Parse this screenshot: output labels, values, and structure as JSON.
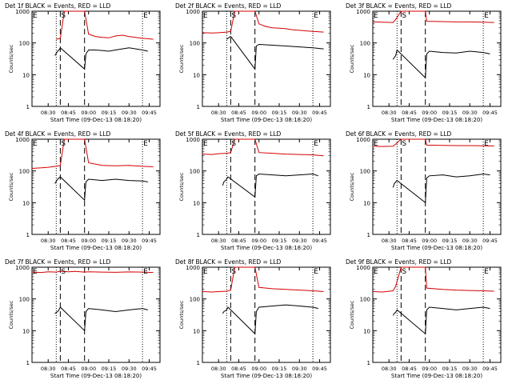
{
  "colors": {
    "events": "#000000",
    "lld": "#d40000",
    "axis": "#000000"
  },
  "chart_data": [
    {
      "type": "line",
      "title": "Det 1f BLACK = Events, RED = LLD",
      "xlabel": "Start Time (09-Dec-13 08:18:20)",
      "ylabel": "Counts/sec",
      "x_ticks": [
        "08:30",
        "08:45",
        "09:00",
        "09:15",
        "09:30",
        "09:45"
      ],
      "y_ticks": [
        "1",
        "10",
        "100",
        "1000"
      ],
      "yscale": "log",
      "ylim": [
        1,
        1000
      ],
      "markers": [
        {
          "label": "E",
          "time": "08:18"
        },
        {
          "label": "S",
          "time": "08:39"
        },
        {
          "label": "E",
          "time": "09:40"
        }
      ],
      "dashed_times": [
        "08:39",
        "08:57"
      ],
      "dotted_times": [
        "08:36",
        "09:40"
      ],
      "series": [
        {
          "name": "LLD",
          "x": [
            "08:36",
            "08:39",
            "08:42",
            "08:57",
            "09:00",
            "09:05",
            "09:10",
            "09:15",
            "09:20",
            "09:25",
            "09:30",
            "09:35",
            "09:40",
            "09:45",
            "09:48"
          ],
          "values": [
            130,
            140,
            1000,
            1000,
            190,
            160,
            150,
            145,
            165,
            175,
            160,
            150,
            140,
            135,
            130
          ]
        },
        {
          "name": "Events",
          "x": [
            "08:35",
            "08:37",
            "08:38",
            "08:39",
            "08:57",
            "08:58",
            "09:00",
            "09:05",
            "09:10",
            "09:15",
            "09:20",
            "09:25",
            "09:30",
            "09:35",
            "09:40",
            "09:44"
          ],
          "values": [
            40,
            55,
            60,
            70,
            15,
            45,
            60,
            60,
            58,
            55,
            60,
            65,
            70,
            65,
            60,
            55
          ]
        }
      ]
    },
    {
      "type": "line",
      "title": "Det 2f BLACK = Events, RED = LLD",
      "xlabel": "Start Time (09-Dec-13 08:18:20)",
      "ylabel": "Counts/sec",
      "x_ticks": [
        "08:30",
        "08:45",
        "09:00",
        "09:15",
        "09:30",
        "09:45"
      ],
      "y_ticks": [
        "1",
        "10",
        "100",
        "1000"
      ],
      "yscale": "log",
      "ylim": [
        1,
        1000
      ],
      "markers": [
        {
          "label": "E",
          "time": "08:18"
        },
        {
          "label": "S",
          "time": "08:39"
        },
        {
          "label": "E",
          "time": "09:40"
        }
      ],
      "dashed_times": [
        "08:39",
        "08:57"
      ],
      "dotted_times": [
        "08:36",
        "09:40"
      ],
      "series": [
        {
          "name": "LLD",
          "x": [
            "08:18",
            "08:25",
            "08:30",
            "08:36",
            "08:39",
            "08:42",
            "08:57",
            "09:00",
            "09:05",
            "09:10",
            "09:15",
            "09:20",
            "09:25",
            "09:30",
            "09:35",
            "09:40",
            "09:48"
          ],
          "values": [
            210,
            205,
            210,
            220,
            230,
            1000,
            1000,
            400,
            330,
            300,
            290,
            280,
            260,
            250,
            240,
            230,
            220
          ]
        },
        {
          "name": "Events",
          "x": [
            "08:36",
            "08:38",
            "08:39",
            "08:57",
            "08:58",
            "09:00",
            "09:10",
            "09:20",
            "09:30",
            "09:40",
            "09:48"
          ],
          "values": [
            130,
            150,
            160,
            15,
            80,
            90,
            85,
            80,
            75,
            70,
            65
          ]
        }
      ]
    },
    {
      "type": "line",
      "title": "Det 3f BLACK = Events, RED = LLD",
      "xlabel": "Start Time (09-Dec-13 08:18:20)",
      "ylabel": "Counts/sec",
      "x_ticks": [
        "08:30",
        "08:45",
        "09:00",
        "09:15",
        "09:30",
        "09:45"
      ],
      "y_ticks": [
        "1",
        "10",
        "100",
        "1000"
      ],
      "yscale": "log",
      "ylim": [
        1,
        1000
      ],
      "markers": [
        {
          "label": "E",
          "time": "08:18"
        },
        {
          "label": "S",
          "time": "08:39"
        },
        {
          "label": "E",
          "time": "09:40"
        }
      ],
      "dashed_times": [
        "08:39",
        "08:57"
      ],
      "dotted_times": [
        "08:36",
        "09:40"
      ],
      "series": [
        {
          "name": "LLD",
          "x": [
            "08:18",
            "08:25",
            "08:33",
            "08:35",
            "08:39",
            "08:57",
            "08:58",
            "09:10",
            "09:20",
            "09:30",
            "09:40",
            "09:48"
          ],
          "values": [
            460,
            450,
            440,
            550,
            1000,
            1000,
            480,
            470,
            460,
            460,
            450,
            440
          ]
        },
        {
          "name": "Events",
          "x": [
            "08:33",
            "08:34",
            "08:35",
            "08:36",
            "08:57",
            "08:58",
            "09:00",
            "09:10",
            "09:20",
            "09:30",
            "09:40",
            "09:45"
          ],
          "values": [
            30,
            35,
            40,
            60,
            8,
            45,
            55,
            50,
            48,
            55,
            50,
            45
          ]
        }
      ]
    },
    {
      "type": "line",
      "title": "Det 4f BLACK = Events, RED = LLD",
      "xlabel": "Start Time (09-Dec-13 08:18:20)",
      "ylabel": "Counts/sec",
      "x_ticks": [
        "08:30",
        "08:45",
        "09:00",
        "09:15",
        "09:30",
        "09:45"
      ],
      "y_ticks": [
        "1",
        "10",
        "100",
        "1000"
      ],
      "yscale": "log",
      "ylim": [
        1,
        1000
      ],
      "markers": [
        {
          "label": "E",
          "time": "08:18"
        },
        {
          "label": "S",
          "time": "08:39"
        },
        {
          "label": "E",
          "time": "09:40"
        }
      ],
      "dashed_times": [
        "08:39",
        "08:57"
      ],
      "dotted_times": [
        "08:36",
        "09:40"
      ],
      "series": [
        {
          "name": "LLD",
          "x": [
            "08:18",
            "08:25",
            "08:30",
            "08:36",
            "08:39",
            "08:42",
            "08:57",
            "09:00",
            "09:10",
            "09:20",
            "09:30",
            "09:40",
            "09:48"
          ],
          "values": [
            120,
            125,
            130,
            140,
            150,
            1000,
            1000,
            180,
            150,
            145,
            150,
            140,
            135
          ]
        },
        {
          "name": "Events",
          "x": [
            "08:35",
            "08:37",
            "08:38",
            "08:39",
            "08:57",
            "08:58",
            "09:00",
            "09:10",
            "09:20",
            "09:30",
            "09:40",
            "09:44"
          ],
          "values": [
            40,
            55,
            60,
            65,
            12,
            45,
            55,
            50,
            55,
            50,
            48,
            45
          ]
        }
      ]
    },
    {
      "type": "line",
      "title": "Det 5f BLACK = Events, RED = LLD",
      "xlabel": "Start Time (09-Dec-13 08:18:20)",
      "ylabel": "Counts/sec",
      "x_ticks": [
        "08:30",
        "08:45",
        "09:00",
        "09:15",
        "09:30",
        "09:45"
      ],
      "y_ticks": [
        "1",
        "10",
        "100",
        "1000"
      ],
      "yscale": "log",
      "ylim": [
        1,
        1000
      ],
      "markers": [
        {
          "label": "E",
          "time": "08:18"
        },
        {
          "label": "S",
          "time": "08:39"
        },
        {
          "label": "E",
          "time": "09:40"
        }
      ],
      "dashed_times": [
        "08:39",
        "08:57"
      ],
      "dotted_times": [
        "08:36",
        "09:40"
      ],
      "series": [
        {
          "name": "LLD",
          "x": [
            "08:18",
            "08:25",
            "08:30",
            "08:36",
            "08:39",
            "08:42",
            "08:57",
            "09:00",
            "09:10",
            "09:20",
            "09:30",
            "09:40",
            "09:48"
          ],
          "values": [
            340,
            330,
            350,
            360,
            380,
            1000,
            1000,
            380,
            360,
            340,
            330,
            320,
            300
          ]
        },
        {
          "name": "Events",
          "x": [
            "08:33",
            "08:34",
            "08:36",
            "08:37",
            "08:57",
            "08:58",
            "09:00",
            "09:10",
            "09:20",
            "09:30",
            "09:40",
            "09:44"
          ],
          "values": [
            35,
            45,
            55,
            65,
            15,
            70,
            80,
            75,
            70,
            75,
            80,
            70
          ]
        }
      ]
    },
    {
      "type": "line",
      "title": "Det 6f BLACK = Events, RED = LLD",
      "xlabel": "Start Time (09-Dec-13 08:18:20)",
      "ylabel": "Counts/sec",
      "x_ticks": [
        "08:30",
        "08:45",
        "09:00",
        "09:15",
        "09:30",
        "09:45"
      ],
      "y_ticks": [
        "1",
        "10",
        "100",
        "1000"
      ],
      "yscale": "log",
      "ylim": [
        1,
        1000
      ],
      "markers": [
        {
          "label": "E",
          "time": "08:18"
        },
        {
          "label": "S",
          "time": "08:39"
        },
        {
          "label": "E",
          "time": "09:40"
        }
      ],
      "dashed_times": [
        "08:39",
        "08:57"
      ],
      "dotted_times": [
        "08:36",
        "09:40"
      ],
      "series": [
        {
          "name": "LLD",
          "x": [
            "08:18",
            "08:25",
            "08:33",
            "08:35",
            "08:39",
            "08:57",
            "08:58",
            "09:10",
            "09:20",
            "09:30",
            "09:40",
            "09:48"
          ],
          "values": [
            600,
            590,
            600,
            700,
            1000,
            1000,
            650,
            640,
            630,
            630,
            620,
            610
          ]
        },
        {
          "name": "Events",
          "x": [
            "08:33",
            "08:34",
            "08:35",
            "08:36",
            "08:57",
            "08:58",
            "09:00",
            "09:10",
            "09:20",
            "09:30",
            "09:40",
            "09:45"
          ],
          "values": [
            30,
            40,
            45,
            50,
            10,
            60,
            70,
            75,
            65,
            70,
            80,
            75
          ]
        }
      ]
    },
    {
      "type": "line",
      "title": "Det 7f BLACK = Events, RED = LLD",
      "xlabel": "Start Time (09-Dec-13 08:18:20)",
      "ylabel": "Counts/sec",
      "x_ticks": [
        "08:30",
        "08:45",
        "09:00",
        "09:15",
        "09:30",
        "09:45"
      ],
      "y_ticks": [
        "1",
        "10",
        "100",
        "1000"
      ],
      "yscale": "log",
      "ylim": [
        1,
        1000
      ],
      "markers": [
        {
          "label": "E",
          "time": "08:18"
        },
        {
          "label": "S",
          "time": "08:39"
        },
        {
          "label": "E",
          "time": "09:40"
        }
      ],
      "dashed_times": [
        "08:39",
        "08:57"
      ],
      "dotted_times": [
        "08:36",
        "09:40"
      ],
      "series": [
        {
          "name": "LLD",
          "x": [
            "08:18",
            "08:25",
            "08:30",
            "08:36",
            "08:39",
            "08:45",
            "08:50",
            "08:57",
            "09:00",
            "09:10",
            "09:20",
            "09:30",
            "09:40",
            "09:48"
          ],
          "values": [
            700,
            680,
            720,
            700,
            750,
            720,
            740,
            700,
            720,
            700,
            690,
            710,
            700,
            680
          ]
        },
        {
          "name": "Events",
          "x": [
            "08:35",
            "08:37",
            "08:38",
            "08:39",
            "08:57",
            "08:58",
            "09:00",
            "09:10",
            "09:20",
            "09:30",
            "09:40",
            "09:44"
          ],
          "values": [
            35,
            40,
            45,
            55,
            10,
            40,
            50,
            45,
            40,
            45,
            50,
            45
          ]
        }
      ]
    },
    {
      "type": "line",
      "title": "Det 8f BLACK = Events, RED = LLD",
      "xlabel": "Start Time (09-Dec-13 08:18:20)",
      "ylabel": "Counts/sec",
      "x_ticks": [
        "08:30",
        "08:45",
        "09:00",
        "09:15",
        "09:30",
        "09:45"
      ],
      "y_ticks": [
        "1",
        "10",
        "100",
        "1000"
      ],
      "yscale": "log",
      "ylim": [
        1,
        1000
      ],
      "markers": [
        {
          "label": "E",
          "time": "08:18"
        },
        {
          "label": "S",
          "time": "08:39"
        },
        {
          "label": "E",
          "time": "09:40"
        }
      ],
      "dashed_times": [
        "08:39",
        "08:57"
      ],
      "dotted_times": [
        "08:36",
        "09:40"
      ],
      "series": [
        {
          "name": "LLD",
          "x": [
            "08:18",
            "08:25",
            "08:30",
            "08:36",
            "08:39",
            "08:42",
            "08:57",
            "09:00",
            "09:10",
            "09:20",
            "09:30",
            "09:40",
            "09:48"
          ],
          "values": [
            170,
            165,
            170,
            175,
            190,
            1000,
            1000,
            230,
            210,
            200,
            190,
            180,
            170
          ]
        },
        {
          "name": "Events",
          "x": [
            "08:33",
            "08:34",
            "08:36",
            "08:37",
            "08:57",
            "08:58",
            "09:00",
            "09:10",
            "09:20",
            "09:30",
            "09:40",
            "09:44"
          ],
          "values": [
            35,
            40,
            45,
            55,
            8,
            40,
            55,
            60,
            65,
            60,
            55,
            50
          ]
        }
      ]
    },
    {
      "type": "line",
      "title": "Det 9f BLACK = Events, RED = LLD",
      "xlabel": "Start Time (09-Dec-13 08:18:20)",
      "ylabel": "Counts/sec",
      "x_ticks": [
        "08:30",
        "08:45",
        "09:00",
        "09:15",
        "09:30",
        "09:45"
      ],
      "y_ticks": [
        "1",
        "10",
        "100",
        "1000"
      ],
      "yscale": "log",
      "ylim": [
        1,
        1000
      ],
      "markers": [
        {
          "label": "E",
          "time": "08:18"
        },
        {
          "label": "S",
          "time": "08:39"
        },
        {
          "label": "E",
          "time": "09:40"
        }
      ],
      "dashed_times": [
        "08:39",
        "08:57"
      ],
      "dotted_times": [
        "08:36",
        "09:40"
      ],
      "series": [
        {
          "name": "LLD",
          "x": [
            "08:18",
            "08:25",
            "08:33",
            "08:35",
            "08:39",
            "08:57",
            "08:58",
            "09:10",
            "09:20",
            "09:30",
            "09:40",
            "09:48"
          ],
          "values": [
            170,
            165,
            180,
            250,
            1000,
            1000,
            220,
            200,
            190,
            185,
            180,
            175
          ]
        },
        {
          "name": "Events",
          "x": [
            "08:33",
            "08:34",
            "08:35",
            "08:36",
            "08:57",
            "08:58",
            "09:00",
            "09:10",
            "09:20",
            "09:30",
            "09:40",
            "09:45"
          ],
          "values": [
            30,
            35,
            38,
            45,
            8,
            45,
            55,
            50,
            45,
            50,
            55,
            50
          ]
        }
      ]
    }
  ]
}
